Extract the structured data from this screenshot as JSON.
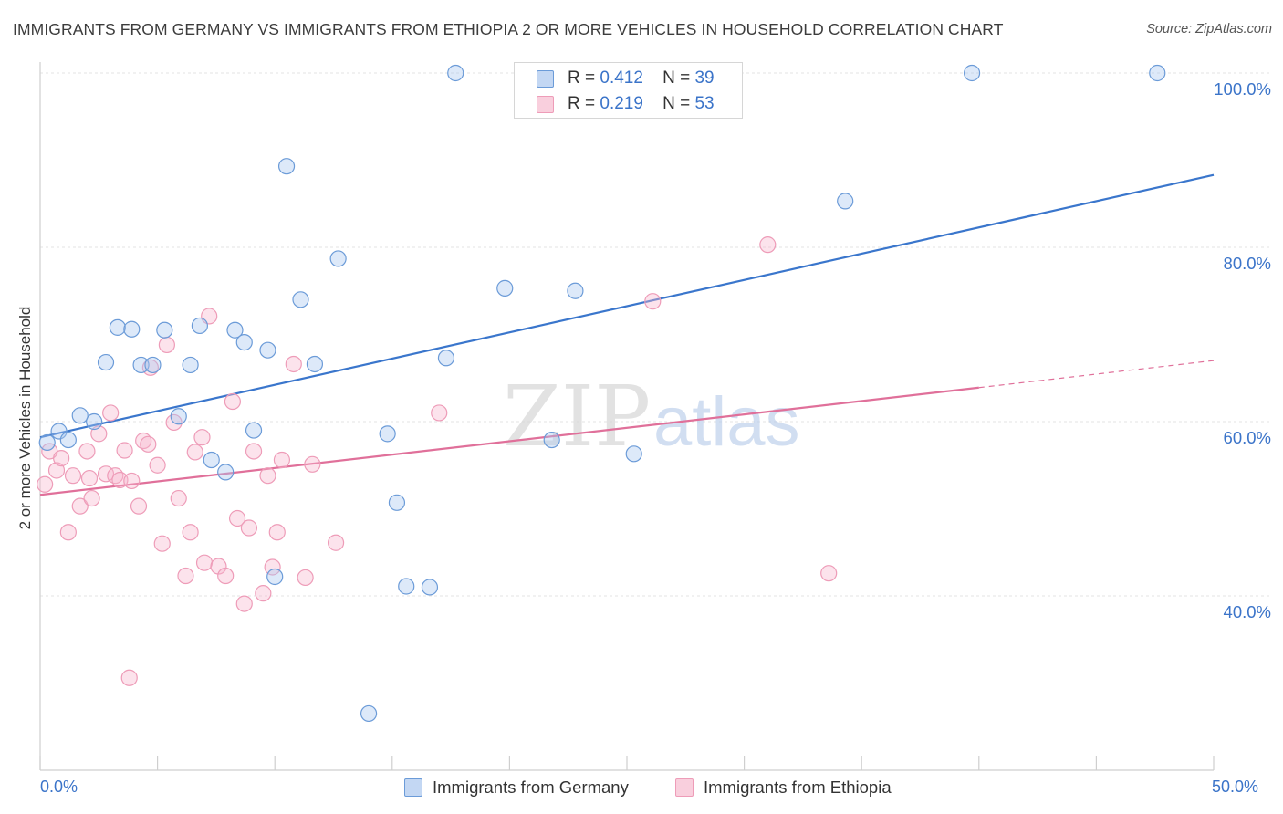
{
  "title": "IMMIGRANTS FROM GERMANY VS IMMIGRANTS FROM ETHIOPIA 2 OR MORE VEHICLES IN HOUSEHOLD CORRELATION CHART",
  "source": "Source: ZipAtlas.com",
  "watermark": {
    "part1": "ZIP",
    "part2": "atlas"
  },
  "legend": {
    "series1": {
      "r_label": "R =",
      "r_value": "0.412",
      "n_label": "N =",
      "n_value": "39"
    },
    "series2": {
      "r_label": "R =",
      "r_value": "0.219",
      "n_label": "N =",
      "n_value": "53"
    }
  },
  "chart_data": {
    "type": "scatter",
    "title": "IMMIGRANTS FROM GERMANY VS IMMIGRANTS FROM ETHIOPIA 2 OR MORE VEHICLES IN HOUSEHOLD CORRELATION CHART",
    "xlabel": "",
    "ylabel": "2 or more Vehicles in Household",
    "xlim": [
      0,
      50
    ],
    "ylim": [
      18,
      102
    ],
    "x_tick_labels": [
      "0.0%",
      "50.0%"
    ],
    "y_ticks": [
      {
        "value": 100,
        "label": "100.0%"
      },
      {
        "value": 80,
        "label": "80.0%"
      },
      {
        "value": 60,
        "label": "60.0%"
      },
      {
        "value": 40,
        "label": "40.0%"
      }
    ],
    "colors": {
      "germany": "#6b9bd8",
      "ethiopia": "#ee9cb8",
      "germany_line": "#3a76cc",
      "ethiopia_line": "#e0709a"
    },
    "series": [
      {
        "name": "Immigrants from Germany",
        "r": 0.412,
        "n": 39,
        "trend": {
          "x0": 0,
          "y0": 58.2,
          "x1": 50,
          "y1": 88.3
        },
        "points": [
          {
            "x": 0.3,
            "y": 57.6
          },
          {
            "x": 0.8,
            "y": 58.9
          },
          {
            "x": 1.2,
            "y": 57.9
          },
          {
            "x": 1.7,
            "y": 60.7
          },
          {
            "x": 2.3,
            "y": 60.0
          },
          {
            "x": 2.8,
            "y": 66.8
          },
          {
            "x": 3.3,
            "y": 70.8
          },
          {
            "x": 3.9,
            "y": 70.6
          },
          {
            "x": 4.3,
            "y": 66.5
          },
          {
            "x": 4.8,
            "y": 66.5
          },
          {
            "x": 5.3,
            "y": 70.5
          },
          {
            "x": 5.9,
            "y": 60.6
          },
          {
            "x": 6.4,
            "y": 66.5
          },
          {
            "x": 6.8,
            "y": 71.0
          },
          {
            "x": 7.3,
            "y": 55.6
          },
          {
            "x": 7.9,
            "y": 54.2
          },
          {
            "x": 8.3,
            "y": 70.5
          },
          {
            "x": 8.7,
            "y": 69.1
          },
          {
            "x": 9.1,
            "y": 59.0
          },
          {
            "x": 9.7,
            "y": 68.2
          },
          {
            "x": 10.5,
            "y": 89.3
          },
          {
            "x": 11.1,
            "y": 74.0
          },
          {
            "x": 11.7,
            "y": 66.6
          },
          {
            "x": 12.7,
            "y": 78.7
          },
          {
            "x": 14.0,
            "y": 26.5
          },
          {
            "x": 14.8,
            "y": 58.6
          },
          {
            "x": 15.2,
            "y": 50.7
          },
          {
            "x": 15.6,
            "y": 41.1
          },
          {
            "x": 16.6,
            "y": 41.0
          },
          {
            "x": 17.3,
            "y": 67.3
          },
          {
            "x": 17.7,
            "y": 100.0
          },
          {
            "x": 19.8,
            "y": 75.3
          },
          {
            "x": 21.8,
            "y": 57.9
          },
          {
            "x": 22.8,
            "y": 75.0
          },
          {
            "x": 25.3,
            "y": 56.3
          },
          {
            "x": 10.0,
            "y": 42.2
          },
          {
            "x": 34.3,
            "y": 85.3
          },
          {
            "x": 39.7,
            "y": 100.0
          },
          {
            "x": 47.6,
            "y": 100.0
          }
        ]
      },
      {
        "name": "Immigrants from Ethiopia",
        "r": 0.219,
        "n": 53,
        "trend": {
          "x0": 0,
          "y0": 51.6,
          "x1": 40,
          "y1": 63.9,
          "dash_x1": 50,
          "dash_y1": 67.0
        },
        "points": [
          {
            "x": 0.2,
            "y": 52.8
          },
          {
            "x": 0.4,
            "y": 56.6
          },
          {
            "x": 0.7,
            "y": 54.4
          },
          {
            "x": 0.9,
            "y": 55.8
          },
          {
            "x": 1.2,
            "y": 47.3
          },
          {
            "x": 1.4,
            "y": 53.8
          },
          {
            "x": 1.7,
            "y": 50.3
          },
          {
            "x": 2.0,
            "y": 56.6
          },
          {
            "x": 2.2,
            "y": 51.2
          },
          {
            "x": 2.5,
            "y": 58.6
          },
          {
            "x": 2.8,
            "y": 54.0
          },
          {
            "x": 3.0,
            "y": 61.0
          },
          {
            "x": 3.2,
            "y": 53.8
          },
          {
            "x": 3.4,
            "y": 53.3
          },
          {
            "x": 3.6,
            "y": 56.7
          },
          {
            "x": 3.9,
            "y": 53.2
          },
          {
            "x": 4.2,
            "y": 50.3
          },
          {
            "x": 4.4,
            "y": 57.8
          },
          {
            "x": 4.7,
            "y": 66.2
          },
          {
            "x": 5.0,
            "y": 55.0
          },
          {
            "x": 5.2,
            "y": 46.0
          },
          {
            "x": 5.4,
            "y": 68.8
          },
          {
            "x": 5.7,
            "y": 59.9
          },
          {
            "x": 5.9,
            "y": 51.2
          },
          {
            "x": 6.2,
            "y": 42.3
          },
          {
            "x": 6.4,
            "y": 47.3
          },
          {
            "x": 6.6,
            "y": 56.5
          },
          {
            "x": 6.9,
            "y": 58.2
          },
          {
            "x": 7.0,
            "y": 43.8
          },
          {
            "x": 7.2,
            "y": 72.1
          },
          {
            "x": 7.6,
            "y": 43.4
          },
          {
            "x": 7.9,
            "y": 42.3
          },
          {
            "x": 8.2,
            "y": 62.3
          },
          {
            "x": 8.4,
            "y": 48.9
          },
          {
            "x": 8.7,
            "y": 39.1
          },
          {
            "x": 8.9,
            "y": 47.8
          },
          {
            "x": 9.1,
            "y": 56.6
          },
          {
            "x": 9.5,
            "y": 40.3
          },
          {
            "x": 9.7,
            "y": 53.8
          },
          {
            "x": 9.9,
            "y": 43.3
          },
          {
            "x": 10.1,
            "y": 47.3
          },
          {
            "x": 10.3,
            "y": 55.6
          },
          {
            "x": 10.8,
            "y": 66.6
          },
          {
            "x": 11.3,
            "y": 42.1
          },
          {
            "x": 11.6,
            "y": 55.1
          },
          {
            "x": 12.6,
            "y": 46.1
          },
          {
            "x": 3.8,
            "y": 30.6
          },
          {
            "x": 17.0,
            "y": 61.0
          },
          {
            "x": 26.1,
            "y": 73.8
          },
          {
            "x": 31.0,
            "y": 80.3
          },
          {
            "x": 33.6,
            "y": 42.6
          },
          {
            "x": 2.1,
            "y": 53.5
          },
          {
            "x": 4.6,
            "y": 57.4
          }
        ]
      }
    ]
  },
  "bottom_legend": {
    "item1": "Immigrants from Germany",
    "item2": "Immigrants from Ethiopia"
  }
}
